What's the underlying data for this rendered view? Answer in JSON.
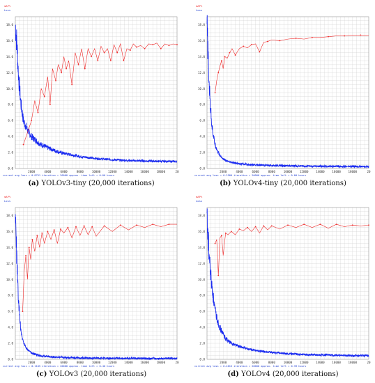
{
  "colors": {
    "loss": "#1b2cf0",
    "map": "#ee2a2a",
    "grid": "#d2d2d2",
    "label_blue": "#1a3ad0"
  },
  "chart_data": [
    {
      "type": "line",
      "letter": "(a)",
      "caption": "YOLOv3-tiny (20,000 iterations)",
      "legend": [
        "mAP%",
        "Loss"
      ],
      "x_ticks": [
        "2000",
        "4000",
        "6000",
        "8000",
        "10000",
        "12000",
        "14000",
        "16000",
        "18000",
        "20"
      ],
      "y_ticks": [
        "0.0",
        "2.0",
        "4.0",
        "6.0",
        "8.0",
        "10.0",
        "12.0",
        "14.0",
        "16.0",
        "18.0"
      ],
      "status": "current avg loss = 0.8751   iteration = 20000   approx. time left = 0.00 hours",
      "xlim": [
        0,
        20000
      ],
      "ylim": [
        0,
        19
      ],
      "series": [
        {
          "name": "Loss",
          "x": [
            0,
            200,
            400,
            700,
            1000,
            1500,
            2000,
            3000,
            4000,
            5000,
            6000,
            8000,
            10000,
            12000,
            14000,
            16000,
            18000,
            20000
          ],
          "y": [
            18.0,
            15.5,
            11.5,
            8.0,
            6.0,
            4.8,
            4.0,
            3.1,
            2.6,
            2.2,
            1.9,
            1.5,
            1.25,
            1.1,
            1.0,
            0.95,
            0.9,
            0.88
          ]
        },
        {
          "name": "mAP%",
          "x": [
            1000,
            1500,
            2000,
            2400,
            2800,
            3200,
            3600,
            4000,
            4300,
            4600,
            5000,
            5300,
            5700,
            6000,
            6300,
            6600,
            7000,
            7400,
            7800,
            8200,
            8600,
            9000,
            9400,
            9800,
            10200,
            10600,
            11000,
            11400,
            11800,
            12200,
            12600,
            13000,
            13400,
            13800,
            14200,
            14600,
            15000,
            15500,
            16000,
            16500,
            17000,
            17500,
            18000,
            18500,
            19000,
            19500,
            20000
          ],
          "y": [
            3.0,
            4.5,
            6.0,
            8.5,
            7.0,
            10.0,
            9.0,
            11.5,
            8.0,
            12.5,
            11.0,
            13.0,
            12.0,
            14.0,
            12.5,
            13.5,
            10.5,
            14.5,
            13.0,
            15.0,
            12.5,
            15.0,
            14.0,
            15.0,
            13.5,
            15.3,
            14.5,
            15.0,
            13.5,
            15.5,
            14.5,
            15.6,
            13.5,
            15.0,
            14.8,
            15.6,
            15.2,
            15.4,
            15.0,
            15.6,
            15.5,
            15.7,
            15.0,
            15.6,
            15.4,
            15.6,
            15.5
          ]
        }
      ]
    },
    {
      "type": "line",
      "letter": "(b)",
      "caption": "YOLOv4-tiny (20,000 iterations)",
      "legend": [
        "mAP%",
        "Loss"
      ],
      "x_ticks": [
        "2000",
        "4000",
        "6000",
        "8000",
        "10000",
        "12000",
        "14000",
        "16000",
        "18000",
        "20"
      ],
      "y_ticks": [
        "0.0",
        "2.0",
        "4.0",
        "6.0",
        "8.0",
        "10.0",
        "12.0",
        "14.0",
        "16.0",
        "18.0"
      ],
      "status": "current avg loss = 0.2500   iteration = 20000   approx. time left = 0.00 hours",
      "xlim": [
        0,
        20000
      ],
      "ylim": [
        0,
        19
      ],
      "series": [
        {
          "name": "Loss",
          "x": [
            0,
            200,
            400,
            600,
            800,
            1000,
            1300,
            1600,
            2000,
            2500,
            3000,
            4000,
            5000,
            6000,
            8000,
            10000,
            12000,
            14000,
            16000,
            18000,
            20000
          ],
          "y": [
            18.0,
            12.0,
            8.0,
            5.5,
            4.0,
            3.0,
            2.2,
            1.6,
            1.2,
            0.9,
            0.75,
            0.6,
            0.5,
            0.45,
            0.38,
            0.33,
            0.3,
            0.28,
            0.27,
            0.26,
            0.25
          ]
        },
        {
          "name": "mAP%",
          "x": [
            1000,
            1200,
            1400,
            1600,
            1800,
            2000,
            2200,
            2500,
            2800,
            3100,
            3500,
            4000,
            4500,
            5000,
            5500,
            6000,
            6500,
            7000,
            7500,
            8000,
            9000,
            10000,
            11000,
            12000,
            13000,
            14000,
            15000,
            16000,
            17000,
            18000,
            19000,
            20000
          ],
          "y": [
            9.5,
            11.0,
            12.0,
            12.8,
            13.5,
            12.5,
            14.0,
            13.8,
            14.5,
            15.0,
            14.2,
            15.0,
            15.3,
            15.1,
            15.5,
            15.6,
            14.6,
            15.8,
            15.9,
            16.1,
            16.0,
            16.2,
            16.3,
            16.2,
            16.4,
            16.4,
            16.5,
            16.6,
            16.6,
            16.7,
            16.7,
            16.7
          ]
        }
      ]
    },
    {
      "type": "line",
      "letter": "(c)",
      "caption": "YOLOv3 (20,000 iterations)",
      "legend": [
        "mAP%",
        "Loss"
      ],
      "x_ticks": [
        "2000",
        "4000",
        "6000",
        "8000",
        "10000",
        "12000",
        "14000",
        "16000",
        "18000",
        "20"
      ],
      "y_ticks": [
        "0.0",
        "2.0",
        "4.0",
        "6.0",
        "8.0",
        "10.0",
        "12.0",
        "14.0",
        "16.0",
        "18.0"
      ],
      "status": "current avg loss = 0.1105   iteration = 20000   approx. time left = 0.40 hours",
      "xlim": [
        0,
        20000
      ],
      "ylim": [
        0,
        19
      ],
      "series": [
        {
          "name": "Loss",
          "x": [
            0,
            200,
            400,
            600,
            800,
            1000,
            1300,
            1600,
            2000,
            2500,
            3000,
            4000,
            5000,
            6000,
            8000,
            10000,
            12000,
            14000,
            16000,
            18000,
            20000
          ],
          "y": [
            18.0,
            12.0,
            7.0,
            4.5,
            3.0,
            2.2,
            1.5,
            1.1,
            0.8,
            0.6,
            0.45,
            0.35,
            0.28,
            0.22,
            0.18,
            0.15,
            0.13,
            0.12,
            0.11,
            0.11,
            0.11
          ]
        },
        {
          "name": "mAP%",
          "x": [
            900,
            1100,
            1300,
            1500,
            1700,
            1900,
            2100,
            2400,
            2700,
            3000,
            3300,
            3600,
            4000,
            4400,
            4800,
            5200,
            5600,
            6000,
            6500,
            7000,
            7500,
            8000,
            8500,
            9000,
            9500,
            10000,
            11000,
            12000,
            13000,
            14000,
            15000,
            16000,
            17000,
            18000,
            19000,
            20000
          ],
          "y": [
            6.0,
            11.0,
            13.0,
            10.0,
            14.0,
            12.5,
            15.0,
            13.5,
            15.5,
            14.0,
            15.8,
            14.5,
            16.0,
            15.0,
            16.2,
            14.5,
            16.3,
            15.8,
            16.5,
            15.2,
            16.6,
            15.5,
            16.7,
            15.6,
            16.6,
            15.4,
            16.7,
            16.0,
            16.8,
            16.2,
            16.8,
            16.5,
            16.9,
            16.6,
            16.9,
            16.9
          ]
        }
      ]
    },
    {
      "type": "line",
      "letter": "(d)",
      "caption": "YOLOv4 (20,000 iterations)",
      "legend": [
        "mAP%",
        "Loss"
      ],
      "x_ticks": [
        "2000",
        "4000",
        "6000",
        "8000",
        "10000",
        "12000",
        "14000",
        "16000",
        "18000",
        "20"
      ],
      "y_ticks": [
        "0.0",
        "2.0",
        "4.0",
        "6.0",
        "8.0",
        "10.0",
        "12.0",
        "14.0",
        "16.0",
        "18.0"
      ],
      "status": "current avg loss = 0.4615   iteration = 20000   approx. time left = 0.39 hours",
      "xlim": [
        0,
        20000
      ],
      "ylim": [
        0,
        19
      ],
      "series": [
        {
          "name": "Loss",
          "x": [
            0,
            200,
            400,
            600,
            800,
            1000,
            1400,
            1800,
            2200,
            2600,
            3000,
            4000,
            5000,
            6000,
            8000,
            10000,
            12000,
            14000,
            16000,
            18000,
            20000
          ],
          "y": [
            18.0,
            14.0,
            11.0,
            9.0,
            7.5,
            6.0,
            4.5,
            3.5,
            2.8,
            2.3,
            2.0,
            1.6,
            1.3,
            1.1,
            0.85,
            0.7,
            0.6,
            0.55,
            0.5,
            0.47,
            0.46
          ]
        },
        {
          "name": "mAP%",
          "x": [
            1000,
            1200,
            1400,
            1600,
            1800,
            2000,
            2300,
            2600,
            3000,
            3500,
            4000,
            4500,
            5000,
            5500,
            6000,
            6500,
            7000,
            7500,
            8000,
            9000,
            10000,
            11000,
            12000,
            13000,
            14000,
            15000,
            16000,
            17000,
            18000,
            19000,
            20000
          ],
          "y": [
            14.5,
            15.0,
            10.5,
            15.2,
            15.5,
            13.0,
            15.8,
            15.6,
            16.0,
            15.6,
            16.3,
            16.1,
            16.5,
            16.0,
            16.6,
            15.8,
            16.7,
            16.2,
            16.7,
            16.3,
            16.8,
            16.5,
            16.9,
            16.5,
            16.9,
            16.4,
            16.9,
            16.6,
            16.8,
            16.7,
            16.8
          ]
        }
      ]
    }
  ]
}
